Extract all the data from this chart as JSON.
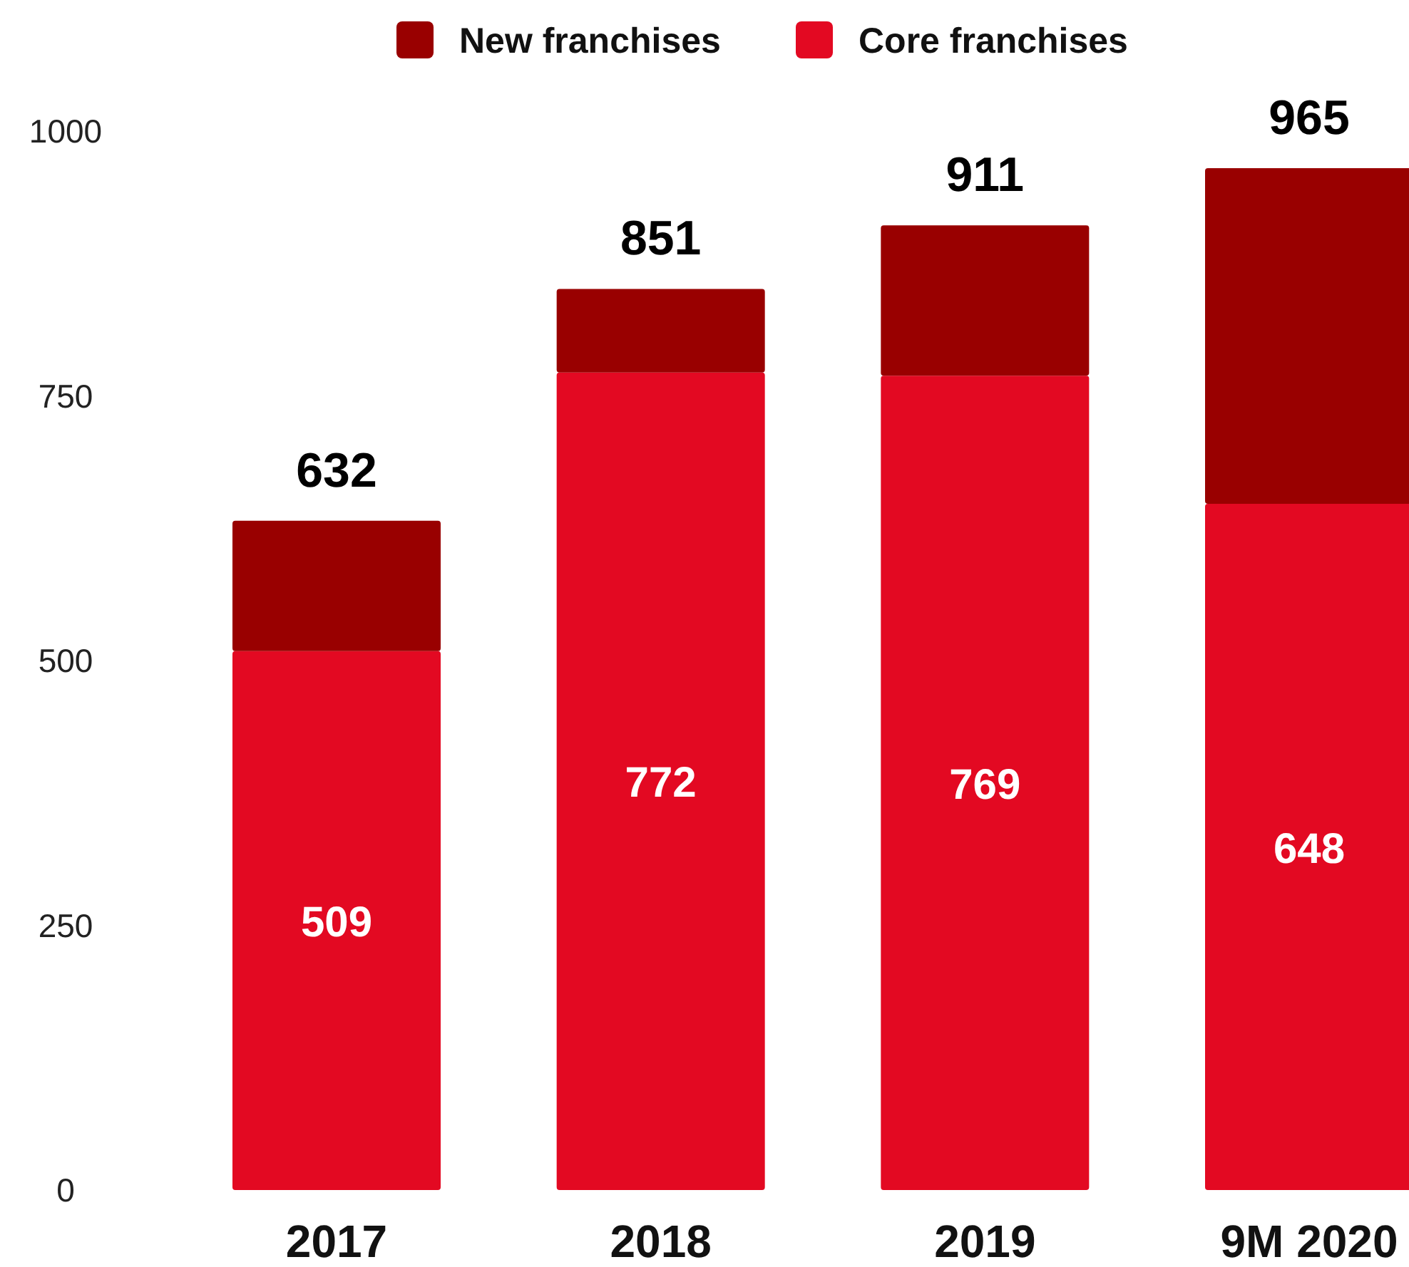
{
  "chart_data": {
    "type": "bar",
    "stacked": true,
    "categories": [
      "2017",
      "2018",
      "2019",
      "9M 2020"
    ],
    "series": [
      {
        "name": "Core franchises",
        "color": "#e30922",
        "values": [
          509,
          772,
          769,
          648
        ],
        "value_labels": [
          "509",
          "772",
          "769",
          "648"
        ]
      },
      {
        "name": "New franchises",
        "color": "#990000",
        "values": [
          123,
          79,
          142,
          317
        ]
      }
    ],
    "totals": [
      "632",
      "851",
      "911",
      "965"
    ],
    "ylim": [
      0,
      1000
    ],
    "yticks": [
      0,
      250,
      500,
      750,
      1000
    ],
    "grid": false,
    "legend": "top"
  }
}
